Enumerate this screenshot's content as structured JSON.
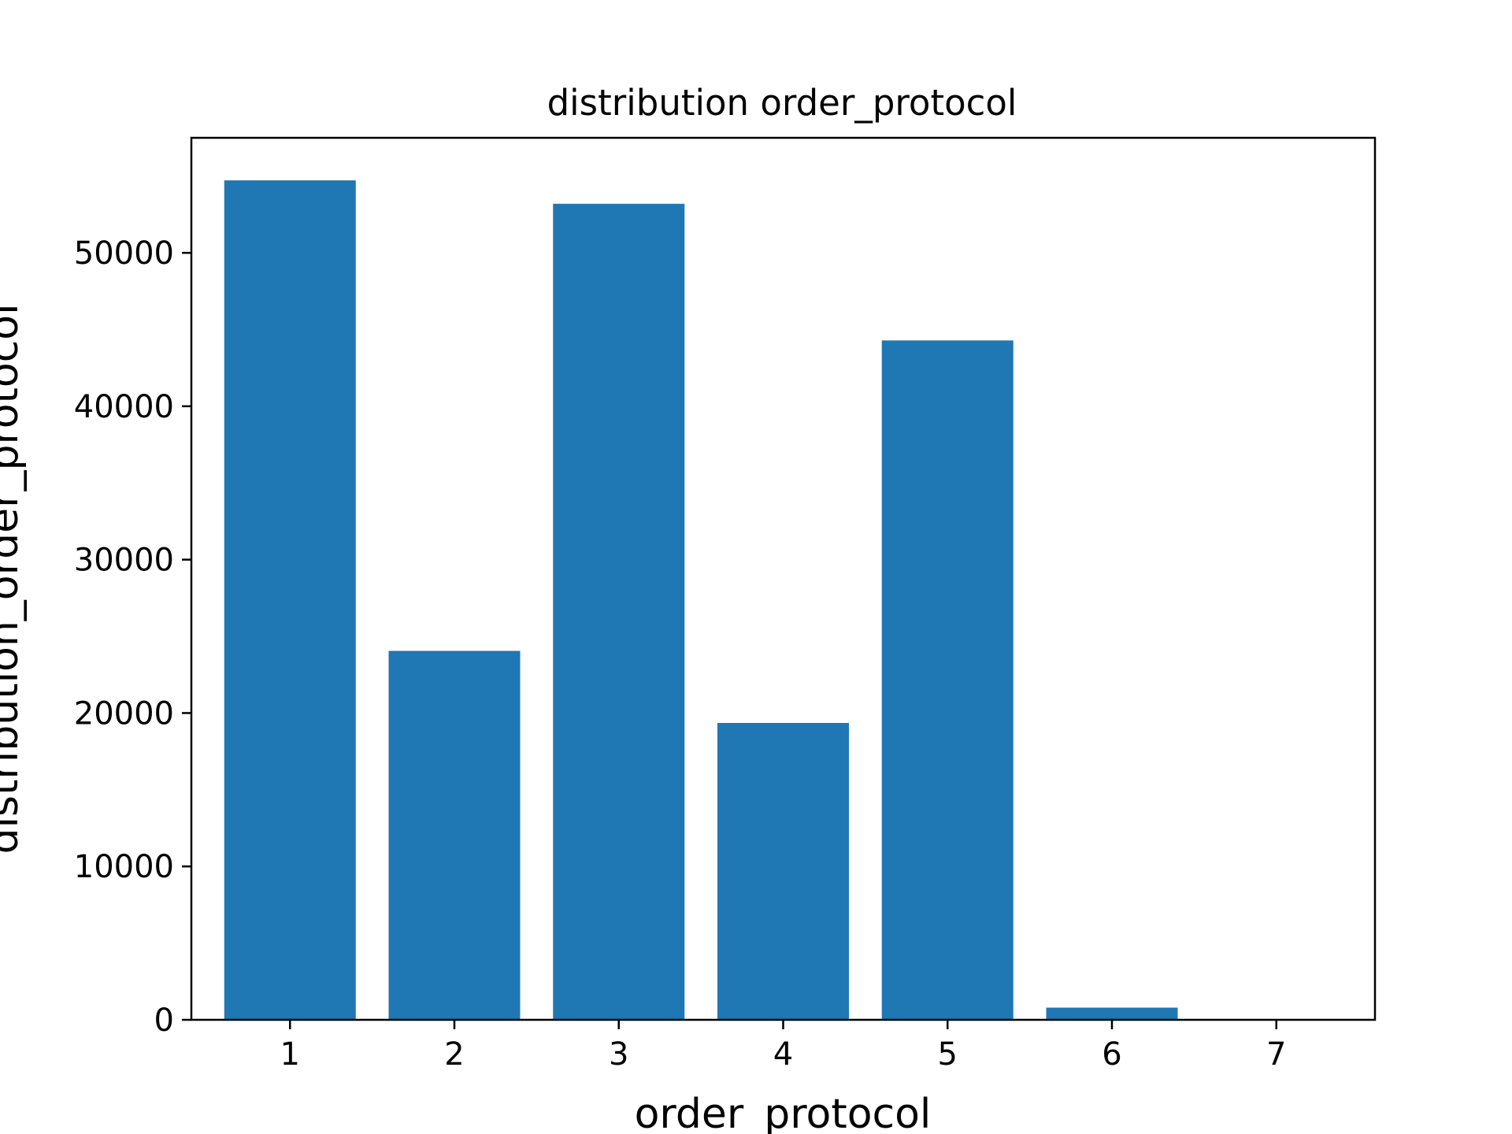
{
  "chart_data": {
    "type": "bar",
    "title": "distribution order_protocol",
    "xlabel": "order_protocol",
    "ylabel": "distribution_order_protocol",
    "categories": [
      "1",
      "2",
      "3",
      "4",
      "5",
      "6",
      "7"
    ],
    "values": [
      54725,
      24052,
      53199,
      19354,
      44290,
      794,
      19
    ],
    "ylim": [
      0,
      57500
    ],
    "yticks": [
      "0",
      "10000",
      "20000",
      "30000",
      "40000",
      "50000"
    ],
    "grid": false,
    "bar_color": "#1f77b4"
  }
}
